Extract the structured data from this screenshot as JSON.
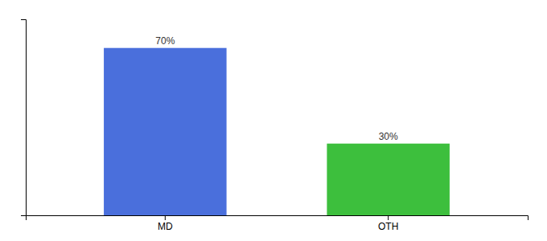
{
  "chart_data": {
    "type": "bar",
    "categories": [
      "MD",
      "OTH"
    ],
    "values": [
      70,
      30
    ],
    "colors": [
      "#4a6fdc",
      "#3dbf3d"
    ],
    "data_labels": true,
    "value_labels": [
      "70%",
      "30%"
    ],
    "ylim": [
      0,
      82
    ],
    "yticks": [],
    "grid": false,
    "tick_labels": "x"
  }
}
